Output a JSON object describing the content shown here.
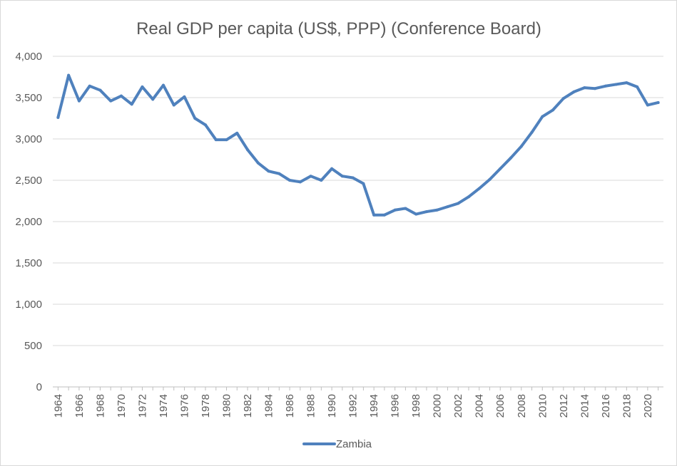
{
  "chart_data": {
    "type": "line",
    "title": "Real GDP per capita (US$, PPP) (Conference Board)",
    "xlabel": "",
    "ylabel": "",
    "ylim": [
      0,
      4000
    ],
    "yticks": [
      0,
      500,
      1000,
      1500,
      2000,
      2500,
      3000,
      3500,
      4000
    ],
    "ytick_labels": [
      "0",
      "500",
      "1,000",
      "1,500",
      "2,000",
      "2,500",
      "3,000",
      "3,500",
      "4,000"
    ],
    "x": [
      1964,
      1965,
      1966,
      1967,
      1968,
      1969,
      1970,
      1971,
      1972,
      1973,
      1974,
      1975,
      1976,
      1977,
      1978,
      1979,
      1980,
      1981,
      1982,
      1983,
      1984,
      1985,
      1986,
      1987,
      1988,
      1989,
      1990,
      1991,
      1992,
      1993,
      1994,
      1995,
      1996,
      1997,
      1998,
      1999,
      2000,
      2001,
      2002,
      2003,
      2004,
      2005,
      2006,
      2007,
      2008,
      2009,
      2010,
      2011,
      2012,
      2013,
      2014,
      2015,
      2016,
      2017,
      2018,
      2019,
      2020,
      2021
    ],
    "xtick_labels": [
      "1964",
      "1966",
      "1968",
      "1970",
      "1972",
      "1974",
      "1976",
      "1978",
      "1980",
      "1982",
      "1984",
      "1986",
      "1988",
      "1990",
      "1992",
      "1994",
      "1996",
      "1998",
      "2000",
      "2002",
      "2004",
      "2006",
      "2008",
      "2010",
      "2012",
      "2014",
      "2016",
      "2018",
      "2020"
    ],
    "series": [
      {
        "name": "Zambia",
        "color": "#4f81bd",
        "values": [
          3260,
          3770,
          3460,
          3640,
          3590,
          3460,
          3520,
          3420,
          3630,
          3480,
          3650,
          3410,
          3510,
          3250,
          3170,
          2990,
          2990,
          3070,
          2870,
          2710,
          2610,
          2580,
          2500,
          2480,
          2550,
          2500,
          2640,
          2550,
          2530,
          2460,
          2080,
          2080,
          2140,
          2160,
          2090,
          2120,
          2140,
          2180,
          2220,
          2300,
          2400,
          2510,
          2640,
          2770,
          2910,
          3080,
          3270,
          3350,
          3490,
          3570,
          3620,
          3610,
          3640,
          3660,
          3680,
          3630,
          3410,
          3440
        ]
      }
    ],
    "legend": {
      "position": "bottom",
      "label": "Zambia"
    },
    "grid": true
  }
}
